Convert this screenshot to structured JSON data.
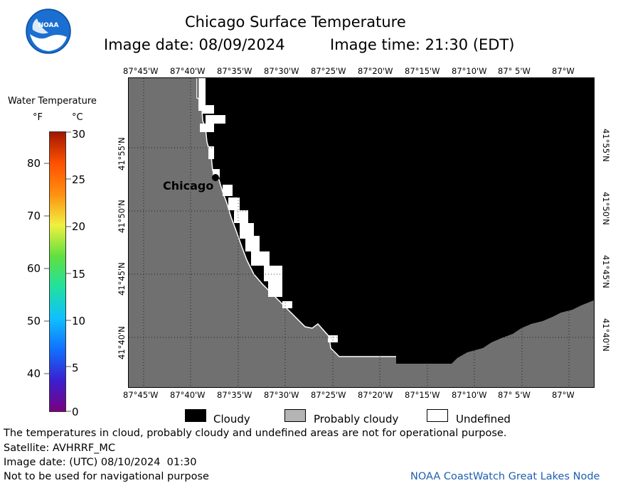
{
  "header": {
    "title": "Chicago Surface Temperature",
    "image_date": "Image date: 08/09/2024",
    "image_time": "Image time: 21:30 (EDT)",
    "logo_text": "NOAA"
  },
  "map": {
    "longitude_labels": [
      "87°45'W",
      "87°40'W",
      "87°35'W",
      "87°30'W",
      "87°25'W",
      "87°20'W",
      "87°15'W",
      "87°10'W",
      "87° 5'W",
      "87°W"
    ],
    "latitude_labels": [
      "41°55'N",
      "41°50'N",
      "41°45'N",
      "41°40'N"
    ],
    "city_label": "Chicago",
    "land_color": "#707070",
    "cloud_color": "#000000",
    "undefined_color": "#ffffff",
    "grid": "dotted"
  },
  "colorbar": {
    "title": "Water Temperature",
    "unit_f": "°F",
    "unit_c": "°C",
    "fahrenheit_ticks": [
      "80",
      "70",
      "60",
      "50",
      "40"
    ],
    "celsius_ticks": [
      "30",
      "25",
      "20",
      "15",
      "10",
      "5",
      "0"
    ],
    "gradient_colors": [
      "#7a0080",
      "#3a20d0",
      "#1070ff",
      "#10c0ff",
      "#20e0a0",
      "#60e040",
      "#f0f040",
      "#ff9010",
      "#ff5000",
      "#a01800"
    ]
  },
  "legend": {
    "items": [
      {
        "label": "Cloudy",
        "color": "#000000"
      },
      {
        "label": "Probably cloudy",
        "color": "#b4b4b4"
      },
      {
        "label": "Undefined",
        "color": "#ffffff"
      }
    ]
  },
  "footer": {
    "disclaimer": "The temperatures in cloud, probably cloudy and undefined areas are not for operational purpose.",
    "satellite": "Satellite: AVHRRF_MC",
    "utc_date": "Image date: (UTC) 08/10/2024  01:30",
    "nav_warning": "Not to be used for navigational purpose",
    "credit": "NOAA CoastWatch Great Lakes Node"
  }
}
